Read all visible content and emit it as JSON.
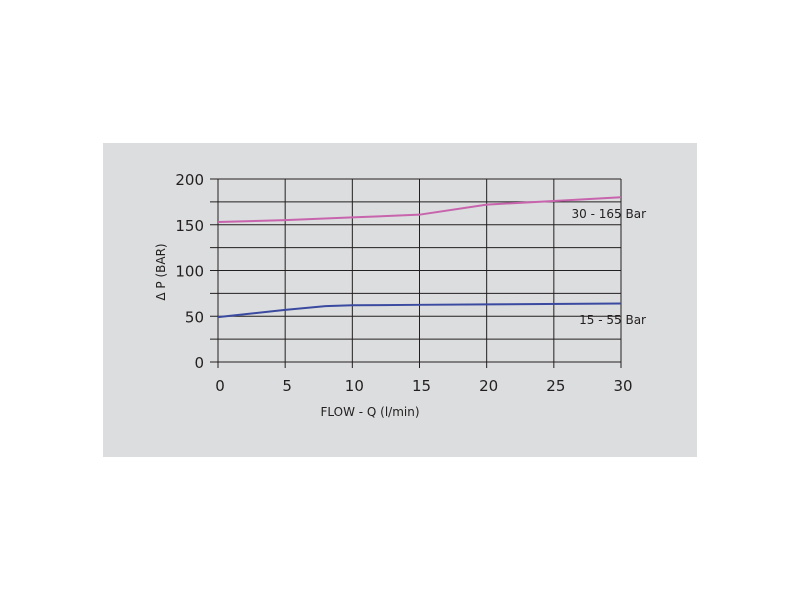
{
  "chart_data": {
    "type": "line",
    "xlabel": "FLOW - Q (l/min)",
    "ylabel": "Δ P (BAR)",
    "xlim": [
      0,
      30
    ],
    "ylim": [
      0,
      200
    ],
    "xticks": [
      0,
      5,
      10,
      15,
      20,
      25,
      30
    ],
    "yticks": [
      0,
      50,
      100,
      150,
      200
    ],
    "grid": true,
    "series": [
      {
        "name": "30 - 165 Bar",
        "color": "#c764ad",
        "x": [
          0,
          5,
          10,
          15,
          20,
          25,
          30
        ],
        "y": [
          153,
          155,
          158,
          161,
          172,
          176,
          180
        ]
      },
      {
        "name": "15 - 55 Bar",
        "color": "#3a4aa0",
        "x": [
          0,
          5,
          8,
          10,
          15,
          20,
          30
        ],
        "y": [
          49,
          57,
          61,
          62,
          62.5,
          63,
          64
        ]
      }
    ]
  }
}
